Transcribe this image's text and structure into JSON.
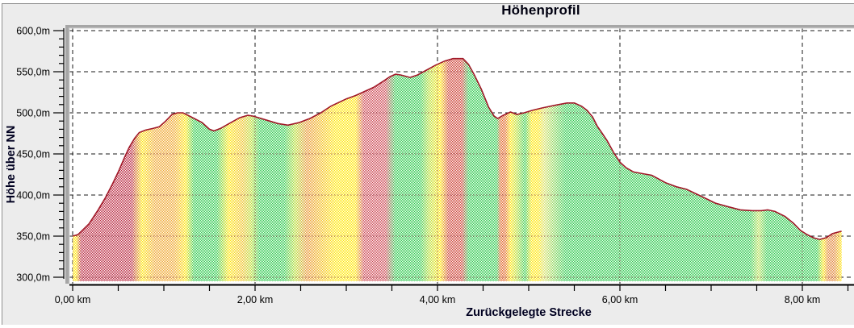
{
  "window": {
    "background_color": "#ececec",
    "border_color": "#8f8f8f",
    "plot_background_color": "#ffffff",
    "frame_color": "#a6a6a6"
  },
  "title": "Höhenprofil",
  "x_axis": {
    "title": "Zurückgelegte Strecke",
    "tick_labels": [
      "0,00 km",
      "2,00 km",
      "4,00 km",
      "6,00 km",
      "8,00 km"
    ],
    "labeled_ticks_km": [
      0,
      2,
      4,
      6,
      8
    ],
    "minor_tick_step_km": 0.5,
    "last_tick_km": 8.5
  },
  "y_axis": {
    "title": "Höhe über NN",
    "tick_labels": [
      "600,0m",
      "550,0m",
      "500,0m",
      "450,0m",
      "400,0m",
      "350,0m",
      "300,0m"
    ],
    "labeled_ticks_m": [
      600,
      550,
      500,
      450,
      400,
      350,
      300
    ],
    "minor_tick_step_m": 10
  },
  "chart_data": {
    "type": "area",
    "title": "Höhenprofil",
    "xlabel": "Zurückgelegte Strecke",
    "ylabel": "Höhe über NN",
    "x_unit": "km",
    "y_unit": "m über NN",
    "x_range_km": [
      0,
      8.43
    ],
    "ylim": [
      300,
      600
    ],
    "grid": "dashed, black, horizontal every 50 m and vertical every 2 km",
    "legend_position": "none",
    "line_color": "#a01828",
    "fill_style": "vertical slope-colored stripes, 50% white dither (green=flat, yellow=moderate, red=steep)",
    "profile_km_m": [
      [
        0.0,
        350
      ],
      [
        0.06,
        352
      ],
      [
        0.18,
        365
      ],
      [
        0.28,
        382
      ],
      [
        0.36,
        397
      ],
      [
        0.43,
        412
      ],
      [
        0.5,
        428
      ],
      [
        0.57,
        446
      ],
      [
        0.62,
        458
      ],
      [
        0.68,
        469
      ],
      [
        0.73,
        476
      ],
      [
        0.8,
        479
      ],
      [
        0.88,
        481
      ],
      [
        0.95,
        483
      ],
      [
        1.02,
        490
      ],
      [
        1.09,
        498
      ],
      [
        1.15,
        500
      ],
      [
        1.21,
        500
      ],
      [
        1.3,
        495
      ],
      [
        1.42,
        488
      ],
      [
        1.5,
        480
      ],
      [
        1.55,
        478
      ],
      [
        1.62,
        481
      ],
      [
        1.7,
        486
      ],
      [
        1.83,
        494
      ],
      [
        1.92,
        497
      ],
      [
        1.98,
        496
      ],
      [
        2.1,
        492
      ],
      [
        2.25,
        487
      ],
      [
        2.36,
        485
      ],
      [
        2.48,
        488
      ],
      [
        2.6,
        493
      ],
      [
        2.72,
        500
      ],
      [
        2.83,
        508
      ],
      [
        3.0,
        517
      ],
      [
        3.1,
        521
      ],
      [
        3.2,
        526
      ],
      [
        3.3,
        531
      ],
      [
        3.4,
        538
      ],
      [
        3.48,
        544
      ],
      [
        3.54,
        547
      ],
      [
        3.6,
        546
      ],
      [
        3.7,
        543
      ],
      [
        3.78,
        546
      ],
      [
        3.88,
        552
      ],
      [
        3.98,
        558
      ],
      [
        4.08,
        563
      ],
      [
        4.17,
        566
      ],
      [
        4.28,
        566
      ],
      [
        4.34,
        559
      ],
      [
        4.4,
        547
      ],
      [
        4.48,
        529
      ],
      [
        4.56,
        507
      ],
      [
        4.62,
        496
      ],
      [
        4.66,
        493
      ],
      [
        4.72,
        497
      ],
      [
        4.8,
        501
      ],
      [
        4.87,
        498
      ],
      [
        4.95,
        500
      ],
      [
        5.04,
        503
      ],
      [
        5.15,
        506
      ],
      [
        5.28,
        509
      ],
      [
        5.42,
        512
      ],
      [
        5.5,
        512
      ],
      [
        5.58,
        508
      ],
      [
        5.64,
        503
      ],
      [
        5.7,
        495
      ],
      [
        5.75,
        484
      ],
      [
        5.8,
        476
      ],
      [
        5.86,
        466
      ],
      [
        5.93,
        452
      ],
      [
        6.0,
        440
      ],
      [
        6.07,
        433
      ],
      [
        6.15,
        428
      ],
      [
        6.25,
        426
      ],
      [
        6.35,
        424
      ],
      [
        6.5,
        415
      ],
      [
        6.62,
        410
      ],
      [
        6.73,
        407
      ],
      [
        6.9,
        398
      ],
      [
        7.05,
        390
      ],
      [
        7.18,
        386
      ],
      [
        7.32,
        382
      ],
      [
        7.45,
        381
      ],
      [
        7.55,
        381
      ],
      [
        7.62,
        382
      ],
      [
        7.7,
        380
      ],
      [
        7.81,
        374
      ],
      [
        7.9,
        366
      ],
      [
        7.98,
        357
      ],
      [
        8.05,
        352
      ],
      [
        8.12,
        348
      ],
      [
        8.19,
        346
      ],
      [
        8.26,
        348
      ],
      [
        8.33,
        353
      ],
      [
        8.43,
        356
      ]
    ],
    "slope_stripe_stops_km": [
      [
        0.0,
        "#ffe600"
      ],
      [
        0.04,
        "#ffe600"
      ],
      [
        0.09,
        "#b8243c"
      ],
      [
        0.65,
        "#b8243c"
      ],
      [
        0.76,
        "#ffe600"
      ],
      [
        0.9,
        "#efa428"
      ],
      [
        1.11,
        "#efa428"
      ],
      [
        1.24,
        "#ffe600"
      ],
      [
        1.33,
        "#28c848"
      ],
      [
        1.58,
        "#28c848"
      ],
      [
        1.71,
        "#ffe600"
      ],
      [
        1.86,
        "#f0c020"
      ],
      [
        1.96,
        "#b4dc28"
      ],
      [
        2.05,
        "#28c848"
      ],
      [
        2.32,
        "#28c848"
      ],
      [
        2.44,
        "#b4dc28"
      ],
      [
        2.57,
        "#e89028"
      ],
      [
        2.88,
        "#ffe600"
      ],
      [
        3.1,
        "#ffe600"
      ],
      [
        3.19,
        "#cc4450"
      ],
      [
        3.43,
        "#cc4450"
      ],
      [
        3.54,
        "#28c848"
      ],
      [
        3.81,
        "#28c848"
      ],
      [
        3.91,
        "#b4dc28"
      ],
      [
        4.03,
        "#ffe600"
      ],
      [
        4.12,
        "#cc3c30"
      ],
      [
        4.27,
        "#cc3c30"
      ],
      [
        4.34,
        "#28c848"
      ],
      [
        4.65,
        "#28c848"
      ],
      [
        4.69,
        "#e06020"
      ],
      [
        4.74,
        "#e06020"
      ],
      [
        4.8,
        "#ffe600"
      ],
      [
        4.87,
        "#b4dc28"
      ],
      [
        4.96,
        "#28c848"
      ],
      [
        5.03,
        "#ffe600"
      ],
      [
        5.1,
        "#ffe600"
      ],
      [
        5.17,
        "#d8e060"
      ],
      [
        5.4,
        "#28c848"
      ],
      [
        7.43,
        "#28c848"
      ],
      [
        7.52,
        "#b8e050"
      ],
      [
        7.61,
        "#28c848"
      ],
      [
        8.16,
        "#28c848"
      ],
      [
        8.23,
        "#ffe600"
      ],
      [
        8.28,
        "#e08030"
      ],
      [
        8.35,
        "#e08030"
      ],
      [
        8.43,
        "#ffe600"
      ]
    ]
  }
}
